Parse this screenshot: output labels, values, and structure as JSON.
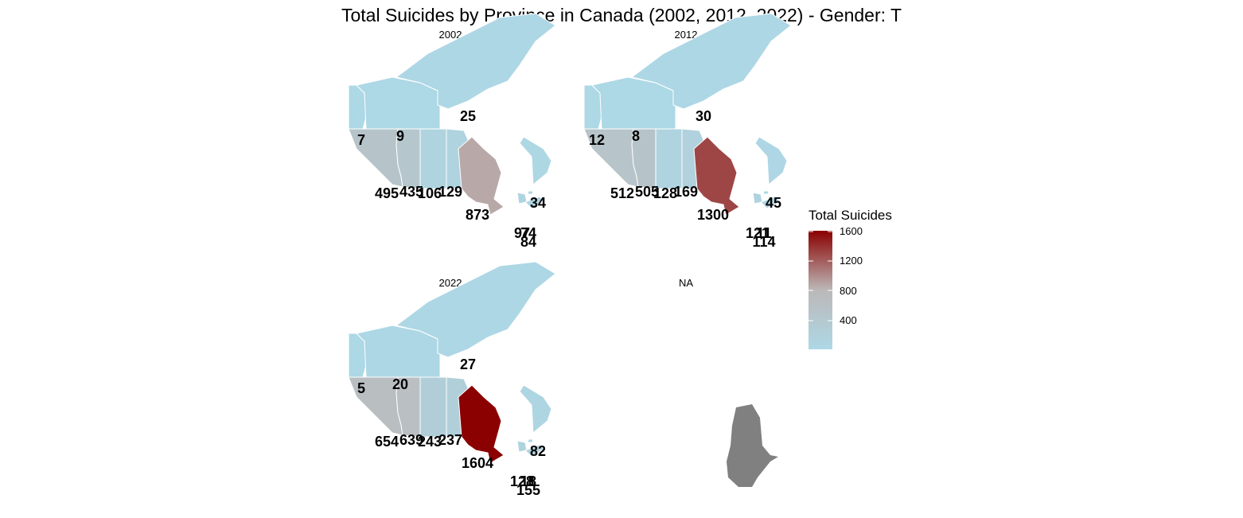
{
  "title": "Total Suicides by Province in Canada (2002, 2012, 2022) - Gender: T",
  "colors": {
    "low": "#add8e6",
    "mid": "#bcb8b8",
    "high": "#8b0000",
    "na": "#808080"
  },
  "panels": [
    {
      "label": "2002",
      "values": {
        "BC": 495,
        "AB": 435,
        "SK": 106,
        "MB": 129,
        "ON": 873,
        "NL": 34,
        "NB": 97,
        "NS": 84,
        "PE": 74,
        "YT": 7,
        "NT": 9,
        "NU": 25
      }
    },
    {
      "label": "2012",
      "values": {
        "BC": 512,
        "AB": 505,
        "SK": 128,
        "MB": 169,
        "ON": 1300,
        "NL": 45,
        "NB": 121,
        "NS": 114,
        "PE": 11,
        "YT": 12,
        "NT": 8,
        "NU": 30
      }
    },
    {
      "label": "2022",
      "values": {
        "BC": 654,
        "AB": 639,
        "SK": 243,
        "MB": 237,
        "ON": 1604,
        "NL": 82,
        "NB": 128,
        "NS": 155,
        "PE": 18,
        "YT": 5,
        "NT": 20,
        "NU": 27
      }
    },
    {
      "label": "NA",
      "values": {}
    }
  ],
  "legend": {
    "title": "Total Suicides",
    "ticks": [
      "1600",
      "1200",
      "800",
      "400"
    ],
    "range": [
      5,
      1604
    ]
  },
  "chart_data": {
    "type": "choropleth",
    "title": "Total Suicides by Province in Canada (2002, 2012, 2022) - Gender: T",
    "legend_title": "Total Suicides",
    "facets": [
      "2002",
      "2012",
      "2022",
      "NA"
    ]
  }
}
